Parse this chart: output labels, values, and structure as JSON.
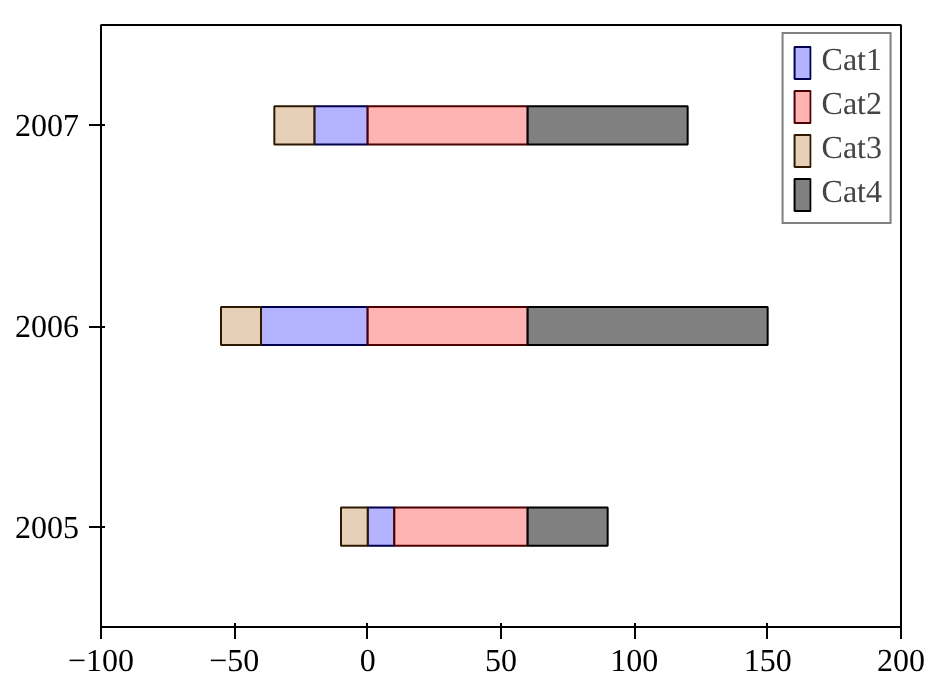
{
  "chart_data": {
    "type": "bar",
    "orientation": "horizontal",
    "stacked": true,
    "categories": [
      "2007",
      "2006",
      "2005"
    ],
    "series": [
      {
        "name": "Cat1",
        "color": "#b3b3ff",
        "values": [
          -20,
          -40,
          10
        ]
      },
      {
        "name": "Cat2",
        "color": "#ffb3b3",
        "values": [
          60,
          60,
          50
        ]
      },
      {
        "name": "Cat3",
        "color": "#e6d0b8",
        "values": [
          -15,
          -15,
          -10
        ]
      },
      {
        "name": "Cat4",
        "color": "#808080",
        "values": [
          60,
          90,
          30
        ]
      }
    ],
    "xlim": [
      -100,
      200
    ],
    "xticks": [
      -100,
      -50,
      0,
      50,
      100,
      150,
      200
    ],
    "grid": false,
    "legend": "top right"
  }
}
